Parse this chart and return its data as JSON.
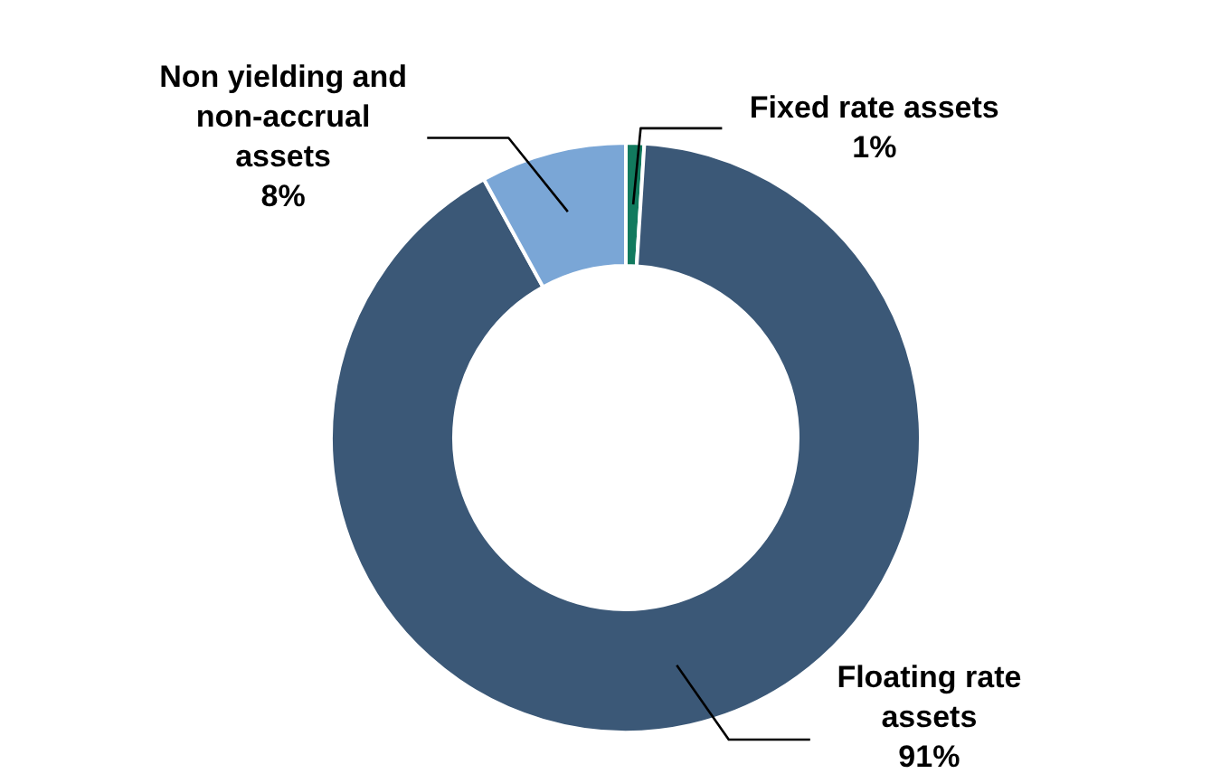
{
  "chart_data": {
    "type": "donut",
    "categories": [
      "Fixed rate assets",
      "Floating rate assets",
      "Non yielding and non-accrual assets"
    ],
    "values": [
      1,
      91,
      8
    ],
    "colors": [
      "#127a5e",
      "#3b5877",
      "#7aa6d6"
    ],
    "value_labels": [
      "1%",
      "91%",
      "8%"
    ]
  }
}
